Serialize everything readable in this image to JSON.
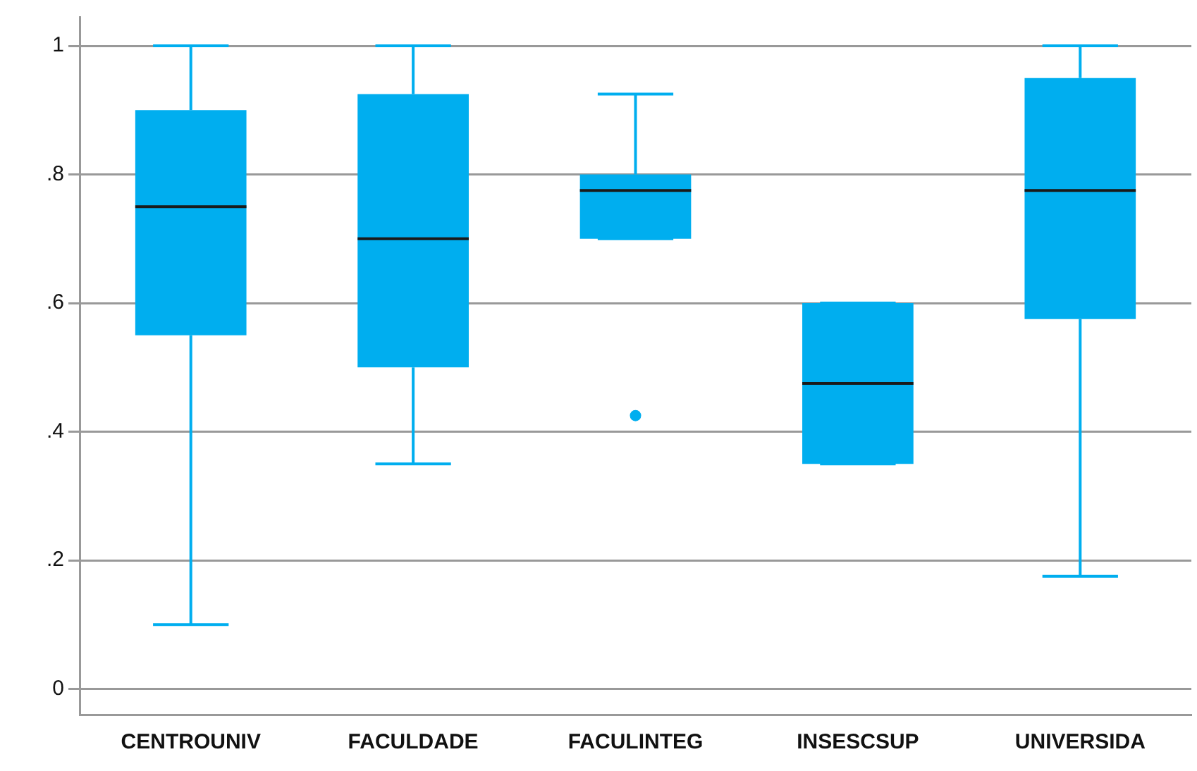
{
  "chart_data": {
    "type": "box",
    "categories": [
      "CENTROUNIV",
      "FACULDADE",
      "FACULINTEG",
      "INSESCSUP",
      "UNIVERSIDA"
    ],
    "series": [
      {
        "color": "#00aeef",
        "boxes": [
          {
            "low": 0.1,
            "q1": 0.55,
            "median": 0.75,
            "q3": 0.9,
            "high": 1
          },
          {
            "low": 0.35,
            "q1": 0.5,
            "median": 0.7,
            "q3": 0.925,
            "high": 1
          },
          {
            "low": 0.7,
            "q1": 0.7,
            "median": 0.775,
            "q3": 0.8,
            "high": 0.925,
            "outliers": [
              0.425
            ]
          },
          {
            "low": 0.35,
            "q1": 0.35,
            "median": 0.475,
            "q3": 0.6,
            "high": 0.6
          },
          {
            "low": 0.175,
            "q1": 0.575,
            "median": 0.775,
            "q3": 0.95,
            "high": 1
          }
        ]
      }
    ],
    "ylim": [
      -0.04,
      1.045
    ],
    "yticks": [
      {
        "value": 0,
        "label": "0"
      },
      {
        "value": 0.2,
        "label": ".2"
      },
      {
        "value": 0.4,
        "label": ".4"
      },
      {
        "value": 0.6,
        "label": ".6"
      },
      {
        "value": 0.8,
        "label": ".8"
      },
      {
        "value": 1,
        "label": "1"
      }
    ],
    "grid": "y"
  }
}
